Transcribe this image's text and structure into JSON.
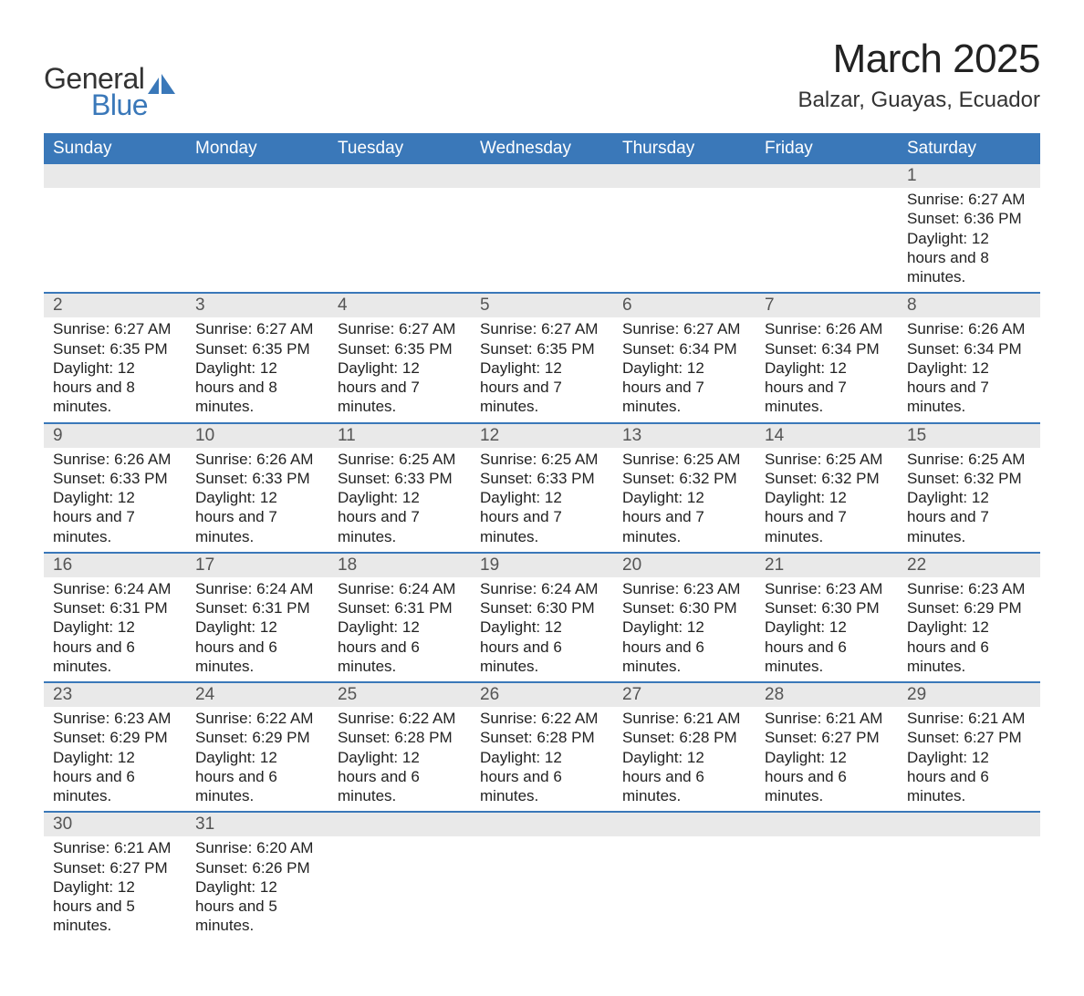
{
  "brand": {
    "text_general": "General",
    "text_blue": "Blue"
  },
  "header": {
    "month_title": "March 2025",
    "location": "Balzar, Guayas, Ecuador"
  },
  "weekdays": [
    "Sunday",
    "Monday",
    "Tuesday",
    "Wednesday",
    "Thursday",
    "Friday",
    "Saturday"
  ],
  "colors": {
    "header_bg": "#3a78b9",
    "header_text": "#ffffff",
    "daynum_band_bg": "#e9e9e9",
    "row_divider": "#3a78b9",
    "body_text": "#222222",
    "brand_blue": "#3a78b9",
    "brand_dark": "#333333",
    "page_bg": "#ffffff"
  },
  "typography": {
    "month_title_fontsize": 44,
    "location_fontsize": 24,
    "weekday_fontsize": 19,
    "daynum_fontsize": 19,
    "body_fontsize": 17,
    "font_family": "Arial"
  },
  "layout": {
    "columns": 7,
    "rows": 6,
    "first_day_column_index": 6
  },
  "labels": {
    "sunrise_prefix": "Sunrise: ",
    "sunset_prefix": "Sunset: ",
    "daylight_prefix": "Daylight: "
  },
  "days": [
    {
      "n": 1,
      "sunrise": "6:27 AM",
      "sunset": "6:36 PM",
      "daylight": "12 hours and 8 minutes."
    },
    {
      "n": 2,
      "sunrise": "6:27 AM",
      "sunset": "6:35 PM",
      "daylight": "12 hours and 8 minutes."
    },
    {
      "n": 3,
      "sunrise": "6:27 AM",
      "sunset": "6:35 PM",
      "daylight": "12 hours and 8 minutes."
    },
    {
      "n": 4,
      "sunrise": "6:27 AM",
      "sunset": "6:35 PM",
      "daylight": "12 hours and 7 minutes."
    },
    {
      "n": 5,
      "sunrise": "6:27 AM",
      "sunset": "6:35 PM",
      "daylight": "12 hours and 7 minutes."
    },
    {
      "n": 6,
      "sunrise": "6:27 AM",
      "sunset": "6:34 PM",
      "daylight": "12 hours and 7 minutes."
    },
    {
      "n": 7,
      "sunrise": "6:26 AM",
      "sunset": "6:34 PM",
      "daylight": "12 hours and 7 minutes."
    },
    {
      "n": 8,
      "sunrise": "6:26 AM",
      "sunset": "6:34 PM",
      "daylight": "12 hours and 7 minutes."
    },
    {
      "n": 9,
      "sunrise": "6:26 AM",
      "sunset": "6:33 PM",
      "daylight": "12 hours and 7 minutes."
    },
    {
      "n": 10,
      "sunrise": "6:26 AM",
      "sunset": "6:33 PM",
      "daylight": "12 hours and 7 minutes."
    },
    {
      "n": 11,
      "sunrise": "6:25 AM",
      "sunset": "6:33 PM",
      "daylight": "12 hours and 7 minutes."
    },
    {
      "n": 12,
      "sunrise": "6:25 AM",
      "sunset": "6:33 PM",
      "daylight": "12 hours and 7 minutes."
    },
    {
      "n": 13,
      "sunrise": "6:25 AM",
      "sunset": "6:32 PM",
      "daylight": "12 hours and 7 minutes."
    },
    {
      "n": 14,
      "sunrise": "6:25 AM",
      "sunset": "6:32 PM",
      "daylight": "12 hours and 7 minutes."
    },
    {
      "n": 15,
      "sunrise": "6:25 AM",
      "sunset": "6:32 PM",
      "daylight": "12 hours and 7 minutes."
    },
    {
      "n": 16,
      "sunrise": "6:24 AM",
      "sunset": "6:31 PM",
      "daylight": "12 hours and 6 minutes."
    },
    {
      "n": 17,
      "sunrise": "6:24 AM",
      "sunset": "6:31 PM",
      "daylight": "12 hours and 6 minutes."
    },
    {
      "n": 18,
      "sunrise": "6:24 AM",
      "sunset": "6:31 PM",
      "daylight": "12 hours and 6 minutes."
    },
    {
      "n": 19,
      "sunrise": "6:24 AM",
      "sunset": "6:30 PM",
      "daylight": "12 hours and 6 minutes."
    },
    {
      "n": 20,
      "sunrise": "6:23 AM",
      "sunset": "6:30 PM",
      "daylight": "12 hours and 6 minutes."
    },
    {
      "n": 21,
      "sunrise": "6:23 AM",
      "sunset": "6:30 PM",
      "daylight": "12 hours and 6 minutes."
    },
    {
      "n": 22,
      "sunrise": "6:23 AM",
      "sunset": "6:29 PM",
      "daylight": "12 hours and 6 minutes."
    },
    {
      "n": 23,
      "sunrise": "6:23 AM",
      "sunset": "6:29 PM",
      "daylight": "12 hours and 6 minutes."
    },
    {
      "n": 24,
      "sunrise": "6:22 AM",
      "sunset": "6:29 PM",
      "daylight": "12 hours and 6 minutes."
    },
    {
      "n": 25,
      "sunrise": "6:22 AM",
      "sunset": "6:28 PM",
      "daylight": "12 hours and 6 minutes."
    },
    {
      "n": 26,
      "sunrise": "6:22 AM",
      "sunset": "6:28 PM",
      "daylight": "12 hours and 6 minutes."
    },
    {
      "n": 27,
      "sunrise": "6:21 AM",
      "sunset": "6:28 PM",
      "daylight": "12 hours and 6 minutes."
    },
    {
      "n": 28,
      "sunrise": "6:21 AM",
      "sunset": "6:27 PM",
      "daylight": "12 hours and 6 minutes."
    },
    {
      "n": 29,
      "sunrise": "6:21 AM",
      "sunset": "6:27 PM",
      "daylight": "12 hours and 6 minutes."
    },
    {
      "n": 30,
      "sunrise": "6:21 AM",
      "sunset": "6:27 PM",
      "daylight": "12 hours and 5 minutes."
    },
    {
      "n": 31,
      "sunrise": "6:20 AM",
      "sunset": "6:26 PM",
      "daylight": "12 hours and 5 minutes."
    }
  ]
}
